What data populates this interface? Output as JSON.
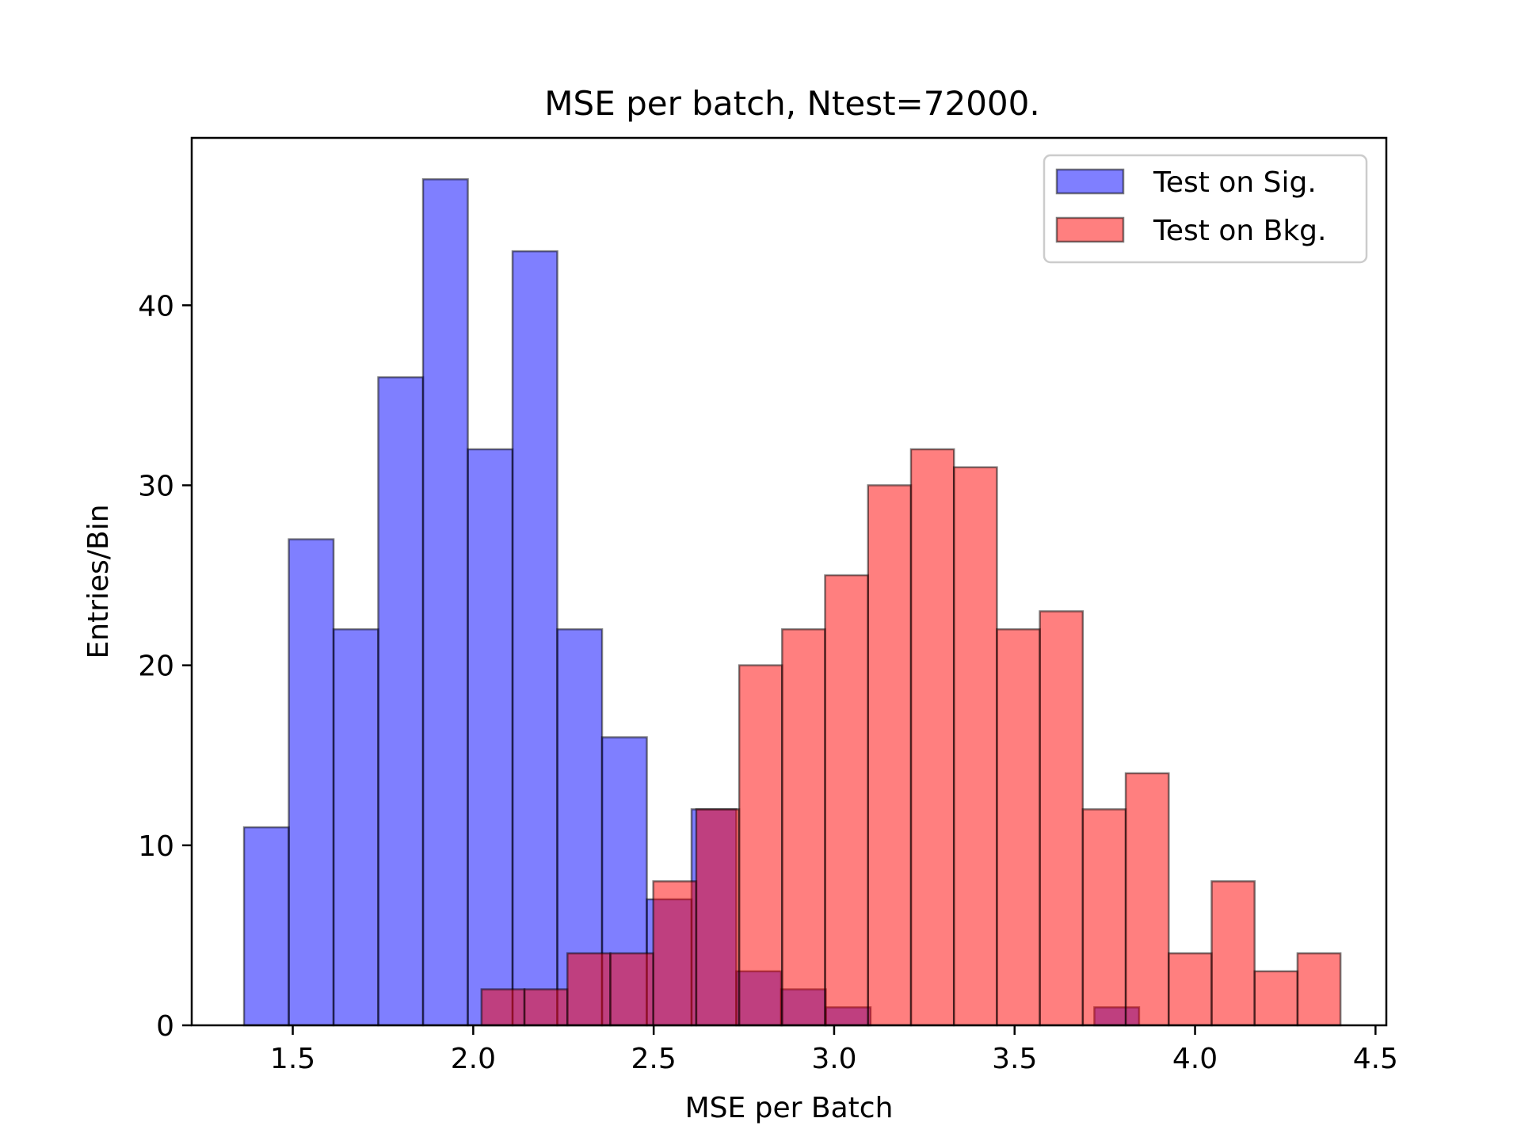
{
  "chart_data": {
    "type": "bar",
    "title": "MSE per batch, Ntest=72000.",
    "xlabel": "MSE per Batch",
    "ylabel": "Entries/Bin",
    "xlim": [
      1.22,
      4.53
    ],
    "ylim": [
      0,
      49.3
    ],
    "xticks": [
      {
        "value": 1.5,
        "label": "1.5"
      },
      {
        "value": 2.0,
        "label": "2.0"
      },
      {
        "value": 2.5,
        "label": "2.5"
      },
      {
        "value": 3.0,
        "label": "3.0"
      },
      {
        "value": 3.5,
        "label": "3.5"
      },
      {
        "value": 4.0,
        "label": "4.0"
      },
      {
        "value": 4.5,
        "label": "4.5"
      }
    ],
    "yticks": [
      {
        "value": 0,
        "label": "0"
      },
      {
        "value": 10,
        "label": "10"
      },
      {
        "value": 20,
        "label": "20"
      },
      {
        "value": 30,
        "label": "30"
      },
      {
        "value": 40,
        "label": "40"
      }
    ],
    "grid": false,
    "legend_position": "top-right",
    "series": [
      {
        "name": "Test on Sig.",
        "color": "#0000ff",
        "alpha": 0.5,
        "bin_edges": [
          1.365,
          1.489,
          1.613,
          1.737,
          1.861,
          1.985,
          2.109,
          2.233,
          2.357,
          2.481,
          2.605,
          2.729,
          2.853,
          2.977,
          3.101,
          3.225,
          3.349,
          3.473,
          3.597,
          3.721,
          3.845
        ],
        "counts": [
          11,
          27,
          22,
          36,
          47,
          32,
          43,
          22,
          16,
          7,
          12,
          3,
          2,
          1,
          0,
          0,
          0,
          0,
          0,
          1
        ]
      },
      {
        "name": "Test on Bkg.",
        "color": "#ff0000",
        "alpha": 0.5,
        "bin_edges": [
          2.023,
          2.142,
          2.261,
          2.38,
          2.499,
          2.618,
          2.737,
          2.856,
          2.975,
          3.094,
          3.213,
          3.332,
          3.451,
          3.57,
          3.689,
          3.808,
          3.927,
          4.046,
          4.165,
          4.284,
          4.403
        ],
        "counts": [
          2,
          2,
          4,
          4,
          8,
          12,
          20,
          22,
          25,
          30,
          32,
          31,
          22,
          23,
          12,
          14,
          4,
          8,
          3,
          4
        ]
      }
    ]
  }
}
